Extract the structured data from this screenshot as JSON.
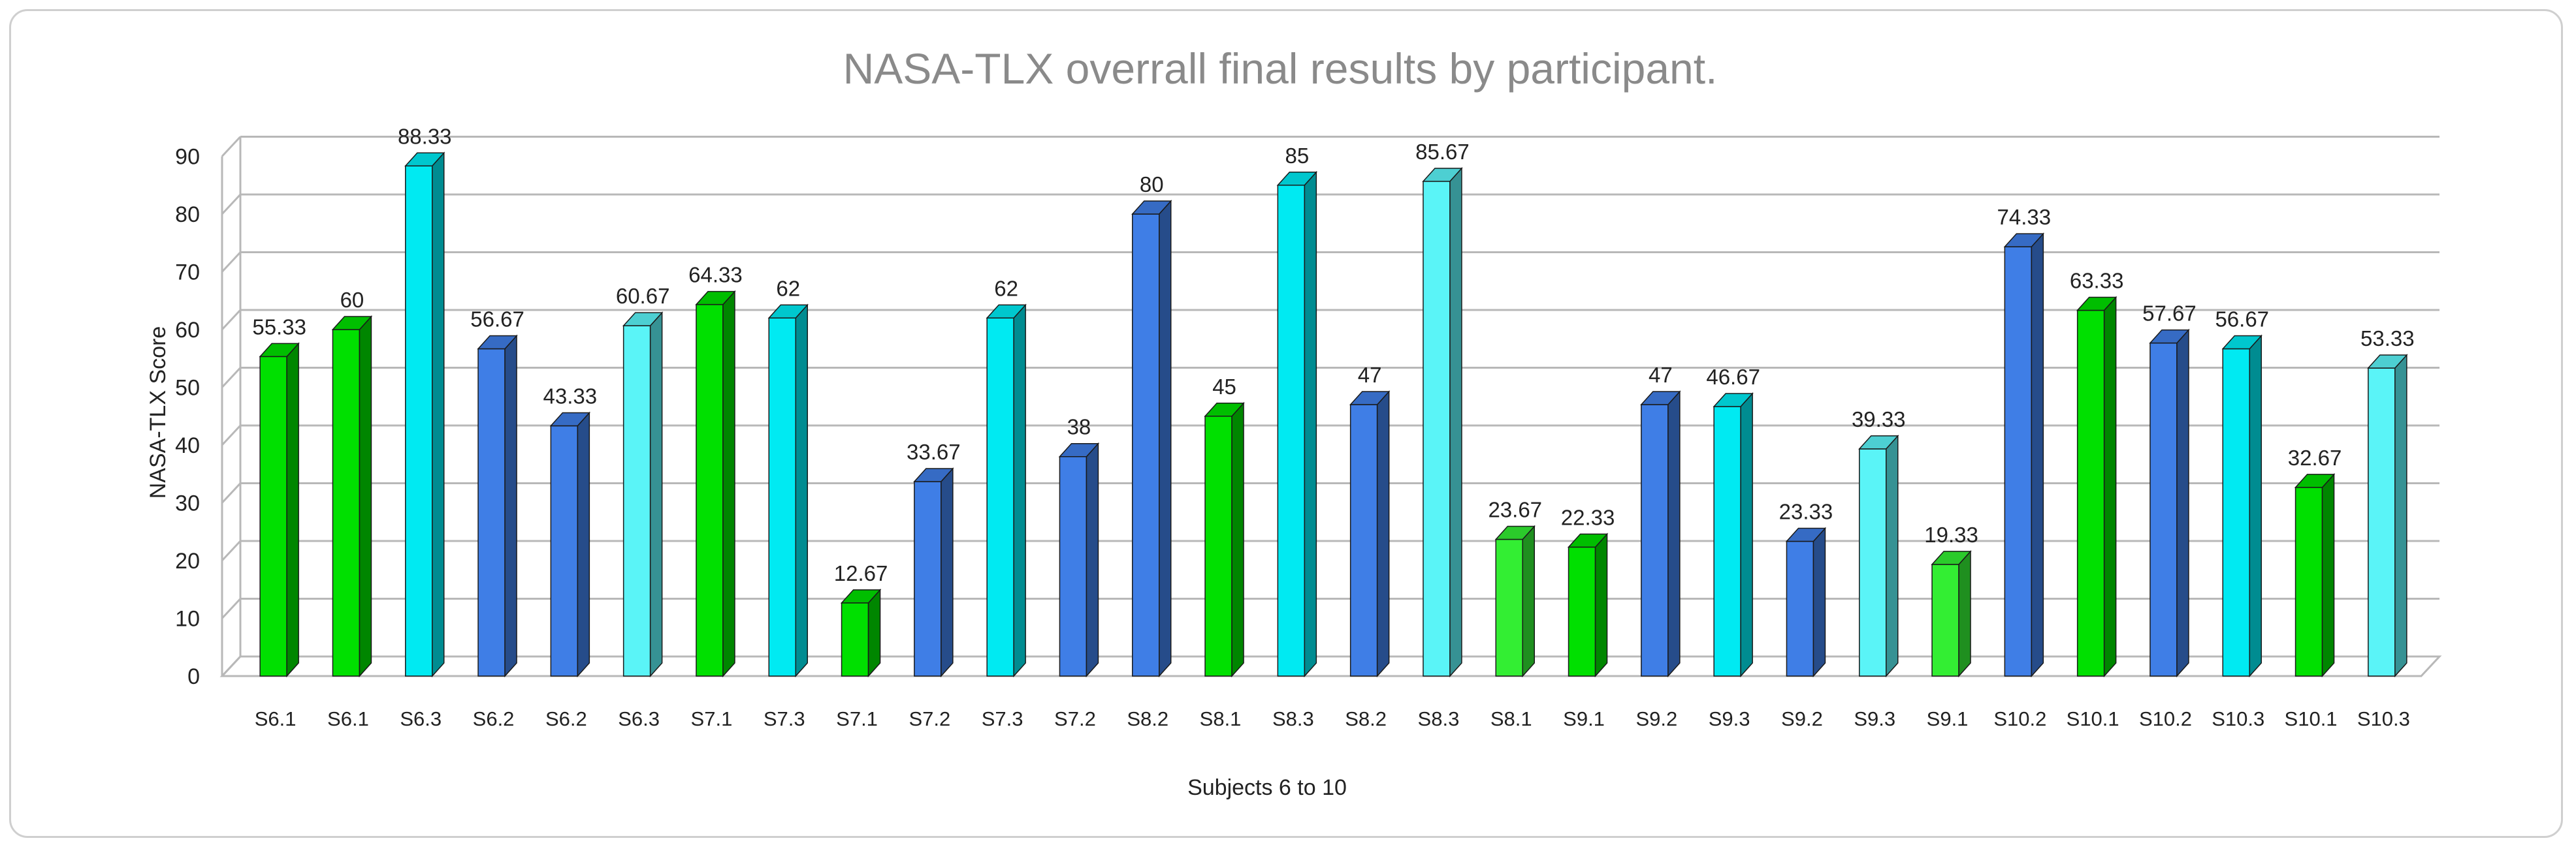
{
  "chart_data": {
    "type": "bar",
    "title": "NASA-TLX overrall final results by participant.",
    "xlabel": "Subjects 6 to 10",
    "ylabel": "NASA-TLX Score",
    "ylim": [
      0,
      90
    ],
    "yticks": [
      0,
      10,
      20,
      30,
      40,
      50,
      60,
      70,
      80,
      90
    ],
    "grid": true,
    "three_d": true,
    "colors": {
      "green": "#00e000",
      "lightgreen": "#33ee33",
      "cyan": "#00eaf2",
      "lightcyan": "#5af4f7",
      "blue": "#3f7ee6"
    },
    "bars": [
      {
        "category": "S6.1",
        "label": "55.33",
        "value": 55.33,
        "color": "green"
      },
      {
        "category": "S6.1",
        "label": "60",
        "value": 60,
        "color": "green"
      },
      {
        "category": "S6.3",
        "label": "88.33",
        "value": 88.33,
        "color": "cyan"
      },
      {
        "category": "S6.2",
        "label": "56.67",
        "value": 56.67,
        "color": "blue"
      },
      {
        "category": "S6.2",
        "label": "43.33",
        "value": 43.33,
        "color": "blue"
      },
      {
        "category": "S6.3",
        "label": "60.67",
        "value": 60.67,
        "color": "lightcyan"
      },
      {
        "category": "S7.1",
        "label": "64.33",
        "value": 64.33,
        "color": "green"
      },
      {
        "category": "S7.3",
        "label": "62",
        "value": 62,
        "color": "cyan"
      },
      {
        "category": "S7.1",
        "label": "12.67",
        "value": 12.67,
        "color": "green"
      },
      {
        "category": "S7.2",
        "label": "33.67",
        "value": 33.67,
        "color": "blue"
      },
      {
        "category": "S7.3",
        "label": "62",
        "value": 62,
        "color": "cyan"
      },
      {
        "category": "S7.2",
        "label": "38",
        "value": 38,
        "color": "blue"
      },
      {
        "category": "S8.2",
        "label": "80",
        "value": 80,
        "color": "blue"
      },
      {
        "category": "S8.1",
        "label": "45",
        "value": 45,
        "color": "green"
      },
      {
        "category": "S8.3",
        "label": "85",
        "value": 85,
        "color": "cyan"
      },
      {
        "category": "S8.2",
        "label": "47",
        "value": 47,
        "color": "blue"
      },
      {
        "category": "S8.3",
        "label": "85.67",
        "value": 85.67,
        "color": "lightcyan"
      },
      {
        "category": "S8.1",
        "label": "23.67",
        "value": 23.67,
        "color": "lightgreen"
      },
      {
        "category": "S9.1",
        "label": "22.33",
        "value": 22.33,
        "color": "green"
      },
      {
        "category": "S9.2",
        "label": "47",
        "value": 47,
        "color": "blue"
      },
      {
        "category": "S9.3",
        "label": "46.67",
        "value": 46.67,
        "color": "cyan"
      },
      {
        "category": "S9.2",
        "label": "23.33",
        "value": 23.33,
        "color": "blue"
      },
      {
        "category": "S9.3",
        "label": "39.33",
        "value": 39.33,
        "color": "lightcyan"
      },
      {
        "category": "S9.1",
        "label": "19.33",
        "value": 19.33,
        "color": "lightgreen"
      },
      {
        "category": "S10.2",
        "label": "74.33",
        "value": 74.33,
        "color": "blue"
      },
      {
        "category": "S10.1",
        "label": "63.33",
        "value": 63.33,
        "color": "green"
      },
      {
        "category": "S10.2",
        "label": "57.67",
        "value": 57.67,
        "color": "blue"
      },
      {
        "category": "S10.3",
        "label": "56.67",
        "value": 56.67,
        "color": "cyan"
      },
      {
        "category": "S10.1",
        "label": "32.67",
        "value": 32.67,
        "color": "green"
      },
      {
        "category": "S10.3",
        "label": "53.33",
        "value": 53.33,
        "color": "lightcyan"
      }
    ]
  }
}
